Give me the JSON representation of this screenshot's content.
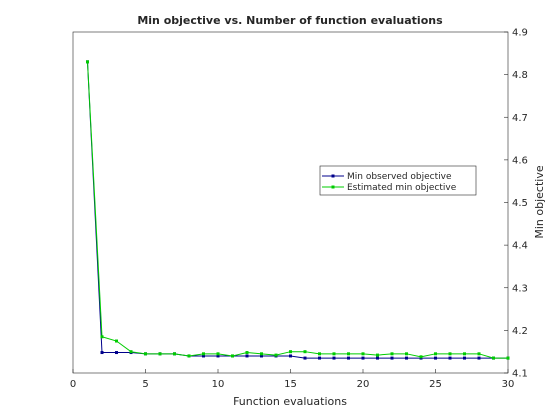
{
  "chart_data": {
    "type": "line",
    "title": "Min objective vs. Number of function evaluations",
    "xlabel": "Function evaluations",
    "ylabel": "Min objective",
    "xlim": [
      0,
      30
    ],
    "ylim": [
      4.1,
      4.9
    ],
    "xticks": [
      "0",
      "5",
      "10",
      "15",
      "20",
      "25",
      "30"
    ],
    "yticks": [
      "4.1",
      "4.2",
      "4.3",
      "4.4",
      "4.5",
      "4.6",
      "4.7",
      "4.8",
      "4.9"
    ],
    "y_axis_side": "right",
    "grid": false,
    "legend_position": "right",
    "series": [
      {
        "name": "Min observed objective",
        "color": "#00008b",
        "marker": "square",
        "x": [
          1,
          2,
          3,
          4,
          5,
          6,
          7,
          8,
          9,
          10,
          11,
          12,
          13,
          14,
          15,
          16,
          17,
          18,
          19,
          20,
          21,
          22,
          23,
          24,
          25,
          26,
          27,
          28,
          29,
          30
        ],
        "y": [
          4.83,
          4.148,
          4.148,
          4.148,
          4.145,
          4.145,
          4.145,
          4.14,
          4.14,
          4.14,
          4.14,
          4.14,
          4.14,
          4.14,
          4.14,
          4.135,
          4.135,
          4.135,
          4.135,
          4.135,
          4.135,
          4.135,
          4.135,
          4.135,
          4.135,
          4.135,
          4.135,
          4.135,
          4.135,
          4.135
        ]
      },
      {
        "name": "Estimated min objective",
        "color": "#00cc00",
        "marker": "square",
        "x": [
          1,
          2,
          3,
          4,
          5,
          6,
          7,
          8,
          9,
          10,
          11,
          12,
          13,
          14,
          15,
          16,
          17,
          18,
          19,
          20,
          21,
          22,
          23,
          24,
          25,
          26,
          27,
          28,
          29,
          30
        ],
        "y": [
          4.83,
          4.185,
          4.175,
          4.15,
          4.145,
          4.145,
          4.145,
          4.14,
          4.145,
          4.145,
          4.14,
          4.148,
          4.145,
          4.142,
          4.15,
          4.15,
          4.145,
          4.145,
          4.145,
          4.145,
          4.142,
          4.145,
          4.145,
          4.138,
          4.145,
          4.145,
          4.145,
          4.145,
          4.135,
          4.135
        ]
      }
    ]
  }
}
